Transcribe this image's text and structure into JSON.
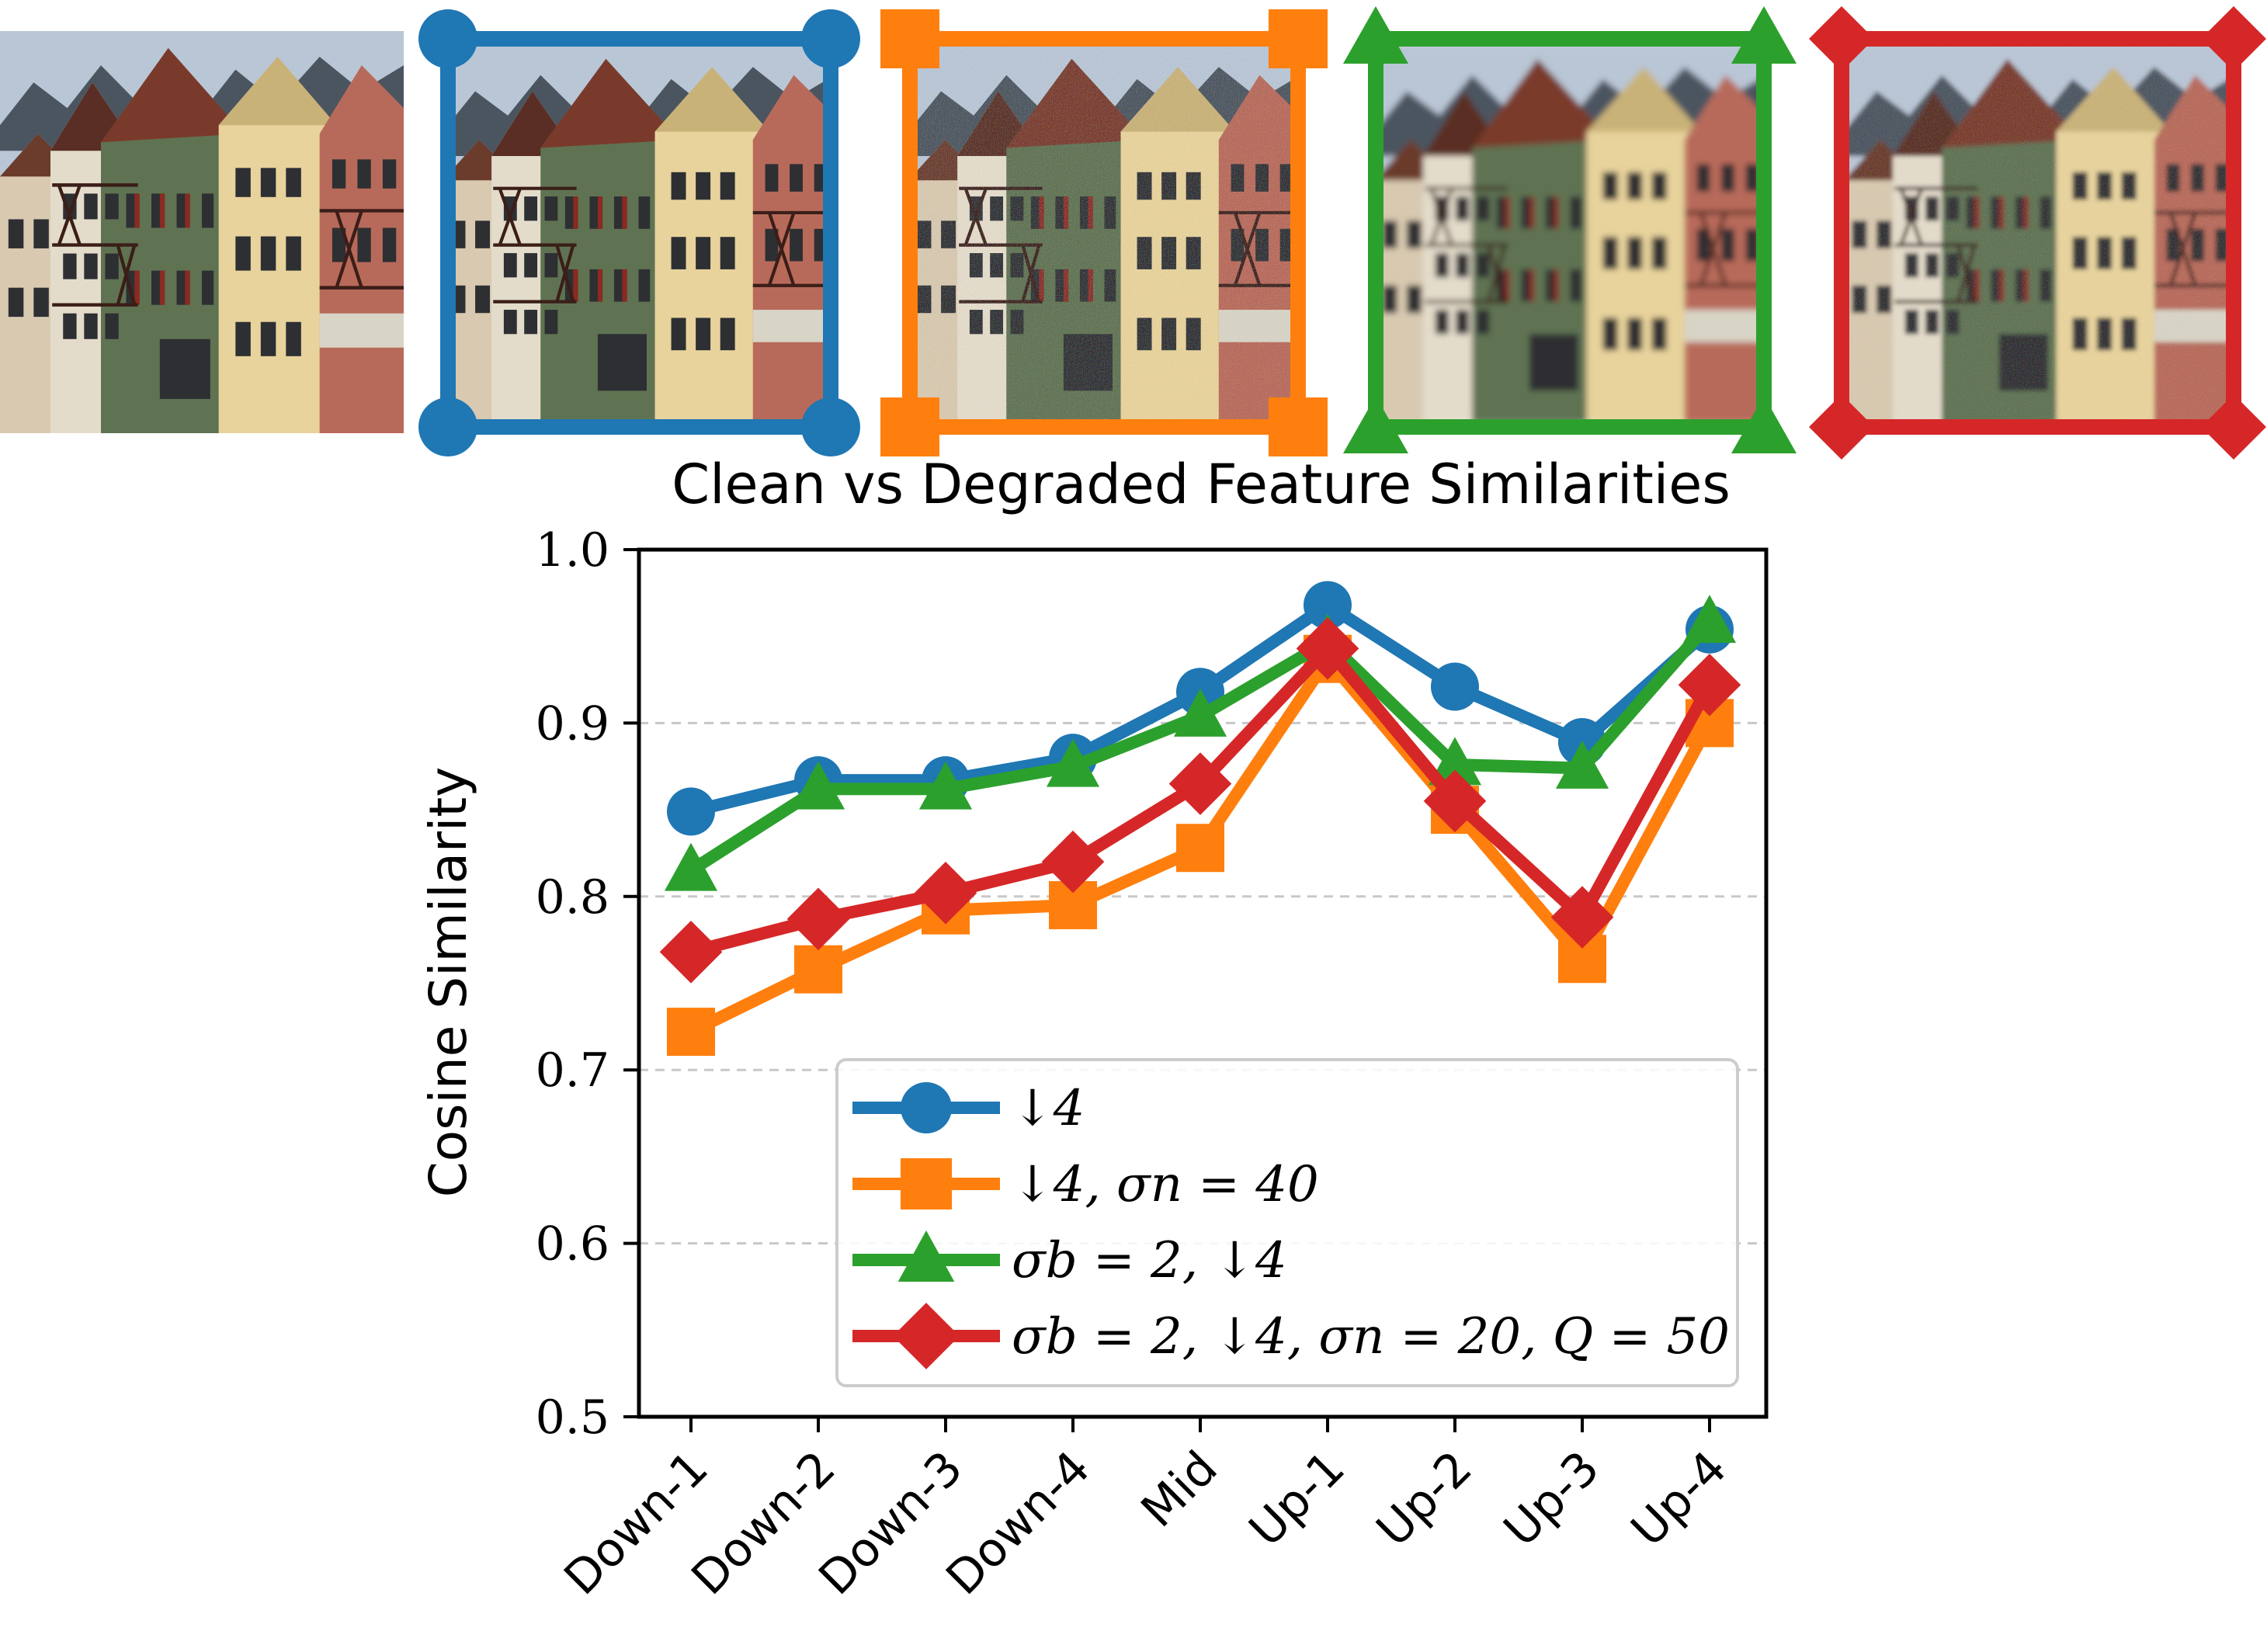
{
  "chart_data": {
    "type": "line",
    "title": "Clean vs Degraded Feature Similarities",
    "xlabel": "",
    "ylabel": "Cosine Similarity",
    "ylim": [
      0.5,
      1.0
    ],
    "yticks": [
      "0.5",
      "0.6",
      "0.7",
      "0.8",
      "0.9",
      "1.0"
    ],
    "grid": "horizontal dashed",
    "legend_position": "lower-right",
    "categories": [
      "Down-1",
      "Down-2",
      "Down-3",
      "Down-4",
      "Mid",
      "Up-1",
      "Up-2",
      "Up-3",
      "Up-4"
    ],
    "series": [
      {
        "name": "↓4",
        "color": "#1f77b4",
        "marker": "circle",
        "values": [
          0.849,
          0.867,
          0.867,
          0.88,
          0.918,
          0.968,
          0.921,
          0.889,
          0.954
        ]
      },
      {
        "name": "↓4,  σn = 40",
        "color": "#ff7f0e",
        "marker": "square",
        "values": [
          0.722,
          0.758,
          0.792,
          0.795,
          0.828,
          0.937,
          0.85,
          0.764,
          0.9
        ]
      },
      {
        "name": "σb = 2, ↓4",
        "color": "#2ca02c",
        "marker": "triangle",
        "values": [
          0.815,
          0.862,
          0.862,
          0.875,
          0.904,
          0.947,
          0.876,
          0.874,
          0.958
        ]
      },
      {
        "name": "σb = 2, ↓4, σn = 20, Q = 50",
        "color": "#d62728",
        "marker": "diamond",
        "values": [
          0.768,
          0.787,
          0.802,
          0.82,
          0.865,
          0.943,
          0.855,
          0.788,
          0.922
        ]
      }
    ]
  },
  "thumbnails": [
    {
      "name": "clean-image",
      "frame_color": "",
      "marker": ""
    },
    {
      "name": "downsampled-image",
      "frame_color": "#1f77b4",
      "marker": "circle"
    },
    {
      "name": "noisy-image",
      "frame_color": "#ff7f0e",
      "marker": "square"
    },
    {
      "name": "blurred-image",
      "frame_color": "#2ca02c",
      "marker": "triangle"
    },
    {
      "name": "mixed-degradation-image",
      "frame_color": "#d62728",
      "marker": "diamond"
    }
  ]
}
